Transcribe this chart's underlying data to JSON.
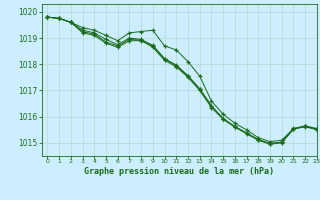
{
  "title": "Graphe pression niveau de la mer (hPa)",
  "background_color": "#cceeff",
  "grid_color": "#aaddcc",
  "line_color": "#1a6b1a",
  "marker_color": "#1a6b1a",
  "xlim": [
    -0.5,
    23
  ],
  "ylim": [
    1014.5,
    1020.3
  ],
  "yticks": [
    1015,
    1016,
    1017,
    1018,
    1019,
    1020
  ],
  "xticks": [
    0,
    1,
    2,
    3,
    4,
    5,
    6,
    7,
    8,
    9,
    10,
    11,
    12,
    13,
    14,
    15,
    16,
    17,
    18,
    19,
    20,
    21,
    22,
    23
  ],
  "series": [
    [
      1019.8,
      1019.75,
      1019.6,
      1019.4,
      1019.3,
      1019.1,
      1018.9,
      1019.2,
      1019.25,
      1019.3,
      1018.7,
      1018.55,
      1018.1,
      1017.55,
      1016.6,
      1016.1,
      1015.75,
      1015.5,
      1015.2,
      1015.05,
      1015.1,
      1015.55,
      1015.65,
      1015.55
    ],
    [
      1019.8,
      1019.75,
      1019.6,
      1019.2,
      1019.1,
      1018.8,
      1018.65,
      1018.9,
      1018.9,
      1018.65,
      1018.15,
      1017.9,
      1017.5,
      1017.0,
      1016.35,
      1015.9,
      1015.6,
      1015.35,
      1015.1,
      1014.95,
      1015.0,
      1015.52,
      1015.62,
      1015.5
    ],
    [
      1019.8,
      1019.75,
      1019.6,
      1019.25,
      1019.15,
      1018.85,
      1018.7,
      1018.95,
      1018.92,
      1018.7,
      1018.2,
      1017.95,
      1017.55,
      1017.05,
      1016.4,
      1015.92,
      1015.62,
      1015.37,
      1015.12,
      1014.97,
      1015.02,
      1015.53,
      1015.63,
      1015.52
    ],
    [
      1019.8,
      1019.75,
      1019.6,
      1019.3,
      1019.2,
      1018.95,
      1018.75,
      1019.0,
      1018.95,
      1018.72,
      1018.22,
      1017.97,
      1017.57,
      1017.07,
      1016.42,
      1015.93,
      1015.63,
      1015.38,
      1015.13,
      1014.98,
      1015.03,
      1015.54,
      1015.64,
      1015.53
    ]
  ]
}
